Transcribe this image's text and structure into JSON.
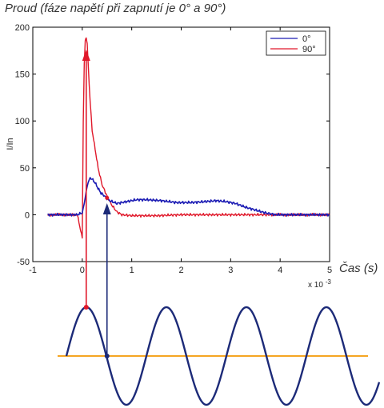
{
  "title": "Proud (fáze napětí při zapnutí je 0° a 90°)",
  "chart_data": {
    "type": "line",
    "title": "Proud (fáze napětí při zapnutí je 0° a 90°)",
    "xlabel": "Čas (s)",
    "ylabel": "I/In",
    "x_multiplier": "x 10",
    "x_multiplier_exp": "-3",
    "xlim": [
      -1,
      5
    ],
    "ylim": [
      -50,
      200
    ],
    "x_ticks": [
      -1,
      0,
      1,
      2,
      3,
      4,
      5
    ],
    "y_ticks": [
      -50,
      0,
      50,
      100,
      150,
      200
    ],
    "grid": false,
    "legend_position": "top-right",
    "series": [
      {
        "name": "0°",
        "color": "#1c1cb4",
        "x": [
          -0.7,
          -0.1,
          0.0,
          0.04,
          0.08,
          0.12,
          0.16,
          0.2,
          0.26,
          0.32,
          0.38,
          0.45,
          0.55,
          0.7,
          0.9,
          1.1,
          1.3,
          1.6,
          1.9,
          2.2,
          2.5,
          2.7,
          2.9,
          3.1,
          3.3,
          3.5,
          3.7,
          3.9,
          4.2,
          4.6,
          5.0
        ],
        "y": [
          0,
          0,
          2,
          12,
          25,
          35,
          39,
          38,
          34,
          28,
          23,
          20,
          15,
          12,
          14,
          16,
          16,
          15,
          13,
          13,
          14,
          15,
          14,
          12,
          8,
          5,
          2,
          0,
          0,
          0,
          0
        ]
      },
      {
        "name": "90°",
        "color": "#e0182a",
        "x": [
          -0.7,
          -0.1,
          0.0,
          0.02,
          0.04,
          0.06,
          0.08,
          0.1,
          0.12,
          0.16,
          0.2,
          0.26,
          0.32,
          0.4,
          0.5,
          0.6,
          0.7,
          0.8,
          1.0,
          1.5,
          2.0,
          3.0,
          4.0,
          5.0
        ],
        "y": [
          0,
          0,
          -25,
          100,
          160,
          185,
          190,
          182,
          160,
          120,
          90,
          70,
          50,
          32,
          20,
          10,
          3,
          0,
          -1,
          -1,
          0,
          0,
          0,
          0
        ]
      }
    ],
    "annotations": [
      {
        "type": "arrow",
        "color": "#e0182a",
        "x": 0.08,
        "y_from": "sine-phase-90",
        "y_to": 170
      },
      {
        "type": "arrow",
        "color": "#1c2a78",
        "x": 0.5,
        "y_from": "sine-phase-0",
        "y_to": 10
      }
    ]
  },
  "wave": {
    "sine_color": "#1c2a78",
    "baseline_color": "#f5a623",
    "red_marker_color": "#e0182a",
    "blue_marker_color": "#1c2a78"
  }
}
